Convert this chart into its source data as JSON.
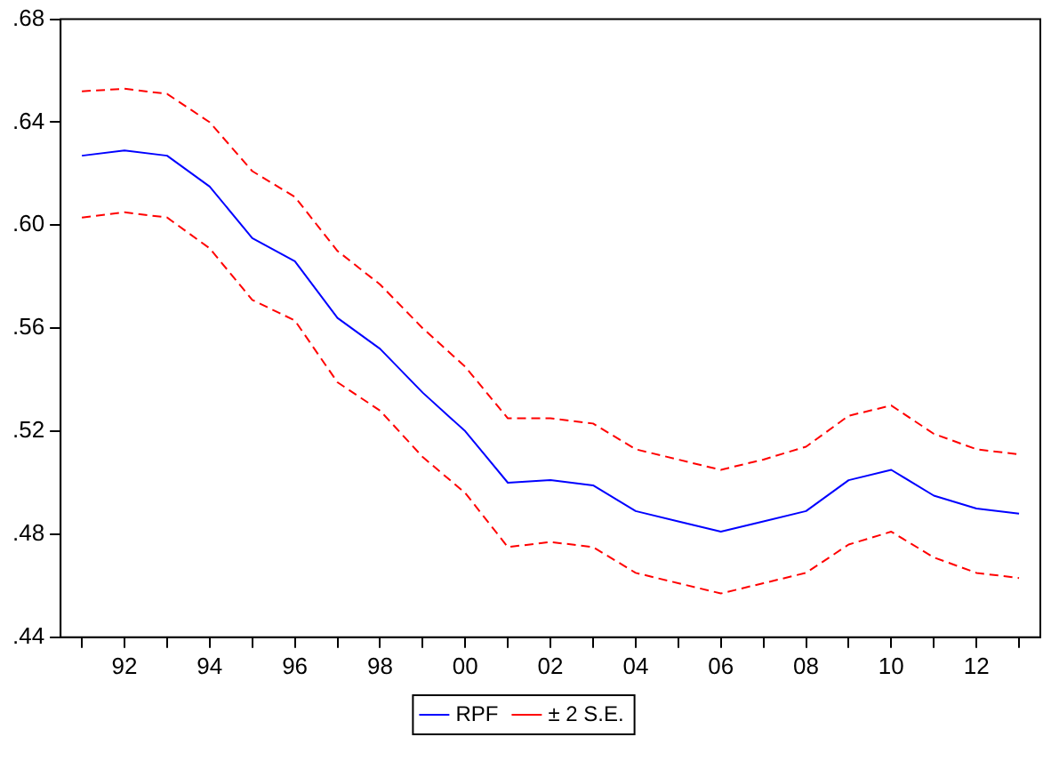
{
  "chart_data": {
    "type": "line",
    "categories": [
      null,
      "92",
      null,
      "94",
      null,
      "96",
      null,
      "98",
      null,
      "00",
      null,
      "02",
      null,
      "04",
      null,
      "06",
      null,
      "08",
      null,
      "10",
      null,
      "12",
      null
    ],
    "series": [
      {
        "name": "RPF",
        "color": "#0000ff",
        "line_style": "solid",
        "values": [
          0.627,
          0.629,
          0.627,
          0.615,
          0.595,
          0.586,
          0.564,
          0.552,
          0.535,
          0.52,
          0.5,
          0.501,
          0.499,
          0.489,
          0.485,
          0.481,
          0.485,
          0.489,
          0.501,
          0.505,
          0.495,
          0.49,
          0.488
        ]
      },
      {
        "name": "± 2 S.E.",
        "color": "#ff0000",
        "line_style": "dashed",
        "values": [
          0.652,
          0.653,
          0.651,
          0.64,
          0.621,
          0.611,
          0.59,
          0.577,
          0.56,
          0.545,
          0.525,
          0.525,
          0.523,
          0.513,
          0.509,
          0.505,
          0.509,
          0.514,
          0.526,
          0.53,
          0.519,
          0.513,
          0.511
        ]
      },
      {
        "color": "#ff0000",
        "line_style": "dashed",
        "values": [
          0.603,
          0.605,
          0.603,
          0.591,
          0.571,
          0.563,
          0.539,
          0.528,
          0.51,
          0.496,
          0.475,
          0.477,
          0.475,
          0.465,
          0.461,
          0.457,
          0.461,
          0.465,
          0.476,
          0.481,
          0.471,
          0.465,
          0.463
        ]
      }
    ],
    "ylim": [
      0.44,
      0.68
    ],
    "yticks": [
      {
        "value": 0.44,
        "label": ".44"
      },
      {
        "value": 0.48,
        "label": ".48"
      },
      {
        "value": 0.52,
        "label": ".52"
      },
      {
        "value": 0.56,
        "label": ".56"
      },
      {
        "value": 0.6,
        "label": ".60"
      },
      {
        "value": 0.64,
        "label": ".64"
      },
      {
        "value": 0.68,
        "label": ".68"
      }
    ],
    "grid": false,
    "legend": "bottom",
    "marker": "none"
  }
}
